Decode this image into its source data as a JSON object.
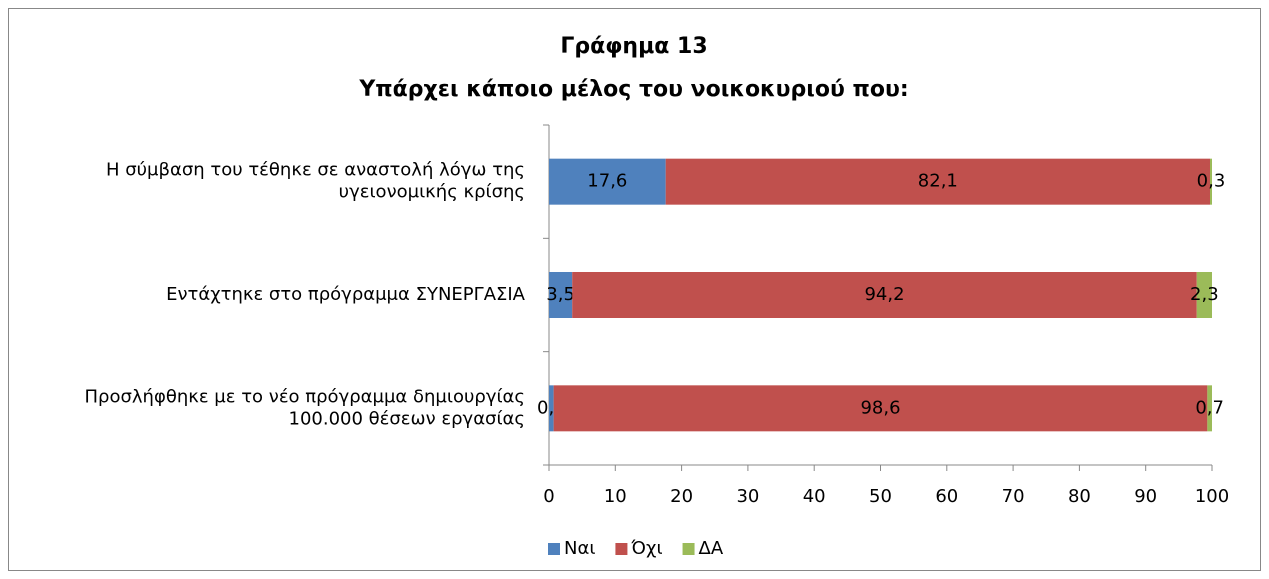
{
  "chart_data": {
    "type": "stacked-barh",
    "title": "Γράφημα 13",
    "subtitle": "Υπάρχει κάποιο μέλος του νοικοκυριού που:",
    "categories": [
      "Η σύμβαση του τέθηκε σε αναστολή λόγω της υγειονομικής κρίσης",
      "Εντάχτηκε στο πρόγραμμα ΣΥΝΕΡΓΑΣΙΑ",
      "Προσλήφθηκε με το νέο πρόγραμμα δημιουργίας 100.000 θέσεων εργασίας"
    ],
    "series": [
      {
        "name": "Ναι",
        "color": "#4f81bd",
        "values": [
          17.6,
          3.5,
          0.7
        ],
        "value_labels": [
          "17,6",
          "3,5",
          "0,7"
        ]
      },
      {
        "name": "Όχι",
        "color": "#c0504d",
        "values": [
          82.1,
          94.2,
          98.6
        ],
        "value_labels": [
          "82,1",
          "94,2",
          "98,6"
        ]
      },
      {
        "name": "ΔΑ",
        "color": "#9bbb59",
        "values": [
          0.3,
          2.3,
          0.7
        ],
        "value_labels": [
          "0,3",
          "2,3",
          "0,7"
        ]
      }
    ],
    "xlim": [
      0,
      100
    ],
    "xticks": [
      0,
      10,
      20,
      30,
      40,
      50,
      60,
      70,
      80,
      90,
      100
    ],
    "legend": "bottom"
  }
}
